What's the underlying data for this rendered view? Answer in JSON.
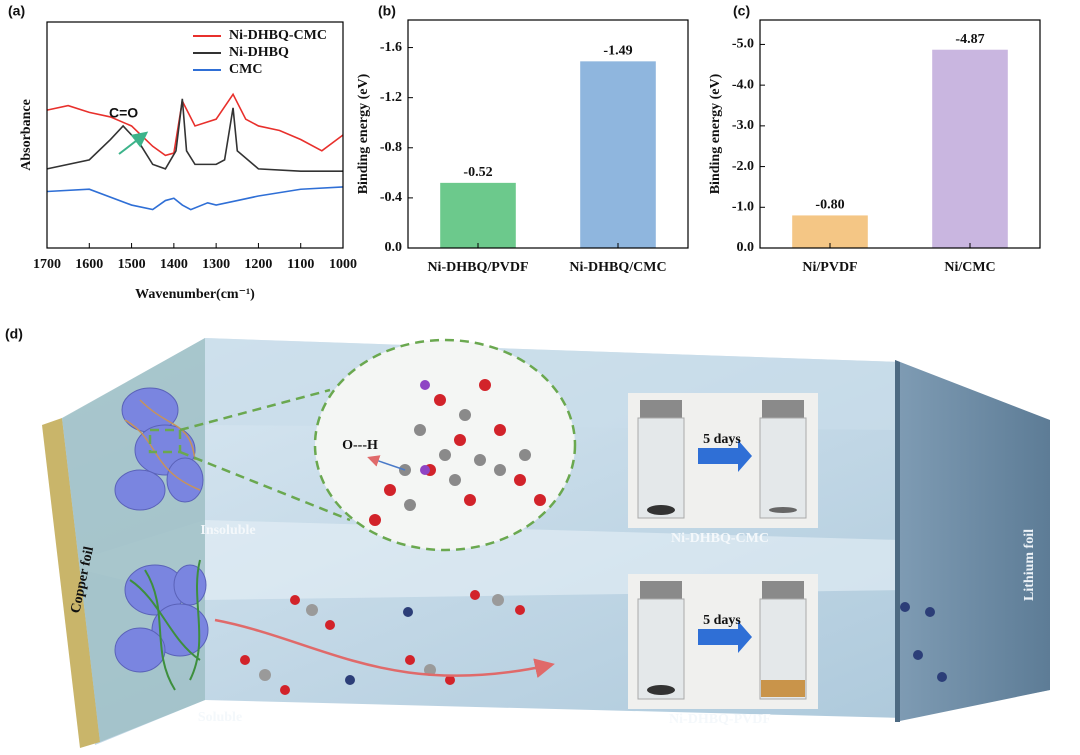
{
  "chart_data": [
    {
      "type": "line",
      "label": "(a)",
      "xlabel": "Wavenumber(cm⁻¹)",
      "ylabel": "Absorbance",
      "xlim": [
        1700,
        1000
      ],
      "xticks": [
        1700,
        1600,
        1500,
        1400,
        1300,
        1200,
        1100,
        1000
      ],
      "ylim": [
        0,
        100
      ],
      "annotation": "C=O",
      "legend": "upper right",
      "series": [
        {
          "name": "Ni-DHBQ-CMC",
          "color": "#e8302c",
          "x": [
            1700,
            1650,
            1600,
            1550,
            1500,
            1450,
            1420,
            1400,
            1380,
            1350,
            1300,
            1260,
            1230,
            1200,
            1150,
            1100,
            1050,
            1000
          ],
          "values": [
            61,
            63,
            60,
            58,
            54,
            45,
            41,
            42,
            65,
            54,
            57,
            68,
            57,
            54,
            52,
            48,
            43,
            50
          ]
        },
        {
          "name": "Ni-DHBQ",
          "color": "#333333",
          "x": [
            1700,
            1600,
            1550,
            1520,
            1480,
            1450,
            1420,
            1395,
            1380,
            1370,
            1350,
            1300,
            1280,
            1260,
            1250,
            1200,
            1100,
            1000
          ],
          "values": [
            35,
            39,
            48,
            54,
            46,
            37,
            35,
            43,
            66,
            43,
            37,
            37,
            39,
            62,
            43,
            35,
            34,
            34
          ]
        },
        {
          "name": "CMC",
          "color": "#2f6fd6",
          "x": [
            1700,
            1600,
            1500,
            1450,
            1420,
            1400,
            1380,
            1360,
            1320,
            1300,
            1250,
            1200,
            1100,
            1000
          ],
          "values": [
            25,
            26,
            19,
            17,
            21,
            22,
            19,
            17,
            20,
            19,
            21,
            23,
            26,
            27
          ]
        }
      ]
    },
    {
      "type": "bar",
      "label": "(b)",
      "ylabel": "Binding energy (eV)",
      "categories": [
        "Ni-DHBQ/PVDF",
        "Ni-DHBQ/CMC"
      ],
      "values": [
        -0.52,
        -1.49
      ],
      "colors": [
        "#6cc98c",
        "#8fb6de"
      ],
      "ylim": [
        0,
        -1.82
      ],
      "yticks": [
        {
          "value": 0,
          "label": "0.0"
        },
        -0.4,
        -0.8,
        -1.2,
        -1.6
      ]
    },
    {
      "type": "bar",
      "label": "(c)",
      "ylabel": "Binding energy (eV)",
      "categories": [
        "Ni/PVDF",
        "Ni/CMC"
      ],
      "values": [
        -0.8,
        -4.87
      ],
      "value_labels": [
        "-0.80",
        "-4.87"
      ],
      "colors": [
        "#f4c685",
        "#c9b6e0"
      ],
      "ylim": [
        0,
        -5.6
      ],
      "yticks": [
        {
          "value": 0,
          "label": "0.0"
        },
        {
          "value": -1,
          "label": "-1.0"
        },
        {
          "value": -2,
          "label": "-2.0"
        },
        {
          "value": -3,
          "label": "-3.0"
        },
        {
          "value": -4,
          "label": "-4.0"
        },
        {
          "value": -5,
          "label": "-5.0"
        }
      ]
    }
  ],
  "diagram": {
    "label": "(d)",
    "left_electrode": "Copper foil",
    "right_electrode": "Lithium foil",
    "top_state": "Insoluble",
    "bottom_state": "Soluble",
    "bond": "O---H",
    "top_arrow": "5 days",
    "bottom_arrow": "5 days",
    "top_sample": "Ni-DHBQ-CMC",
    "bottom_sample": "Ni-DHBQ-PVDF"
  }
}
